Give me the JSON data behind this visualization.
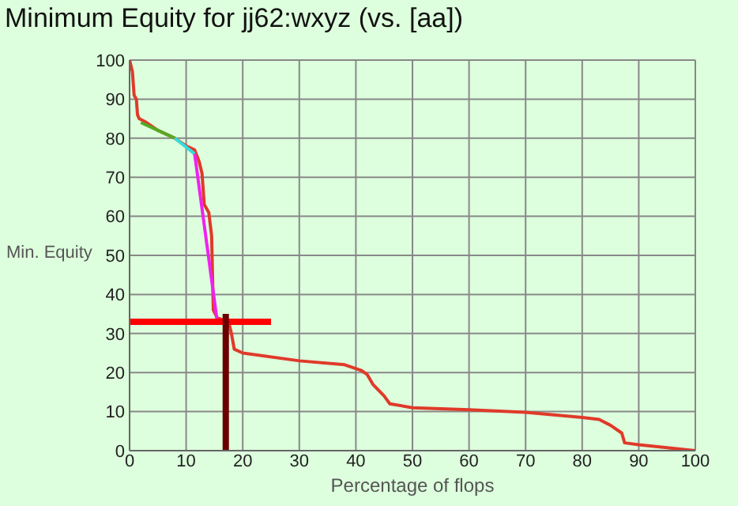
{
  "chart_data": {
    "type": "line",
    "title": "Minimum Equity for jj62:wxyz (vs. [aa])",
    "xlabel": "Percentage of flops",
    "ylabel": "Min. Equity",
    "xlim": [
      0,
      100
    ],
    "ylim": [
      0,
      100
    ],
    "xticks": [
      0,
      10,
      20,
      30,
      40,
      50,
      60,
      70,
      80,
      90,
      100
    ],
    "yticks": [
      0,
      10,
      20,
      30,
      40,
      50,
      60,
      70,
      80,
      90,
      100
    ],
    "grid": true,
    "marker": "none",
    "line_style": "solid",
    "series": [
      {
        "color": "#e03a2a",
        "x": [
          0,
          0.5,
          0.8,
          1.2,
          1.4,
          1.7,
          3,
          5,
          8,
          10,
          11.5,
          12.3,
          12.8,
          13.2,
          14,
          14.5,
          14.8,
          15.5,
          17.5,
          18,
          18.5,
          20,
          30,
          38,
          41,
          42,
          43,
          45,
          46,
          50,
          60,
          70,
          80,
          83,
          85,
          87,
          87.5,
          90,
          100
        ],
        "values": [
          100,
          97,
          91,
          90,
          86,
          85,
          84,
          82,
          80,
          78,
          77,
          74,
          71,
          63,
          61,
          55,
          36,
          34,
          33,
          30,
          26,
          25,
          23,
          22,
          20.5,
          19.5,
          17,
          14,
          12,
          11,
          10.5,
          9.8,
          8.5,
          8,
          6.5,
          4.5,
          2,
          1.5,
          0
        ]
      },
      {
        "color": "#55aa22",
        "x": [
          2,
          5,
          8
        ],
        "values": [
          84,
          82,
          80
        ]
      },
      {
        "color": "#33dddd",
        "x": [
          8,
          11.5
        ],
        "values": [
          80,
          76
        ]
      },
      {
        "color": "#ee22ee",
        "x": [
          11.5,
          15.5
        ],
        "values": [
          76,
          33
        ]
      },
      {
        "color": "#ff0000",
        "x": [
          0,
          25
        ],
        "values": [
          33,
          33
        ]
      },
      {
        "color": "#6b0000",
        "x": [
          17,
          17
        ],
        "values": [
          0,
          35
        ]
      }
    ]
  }
}
